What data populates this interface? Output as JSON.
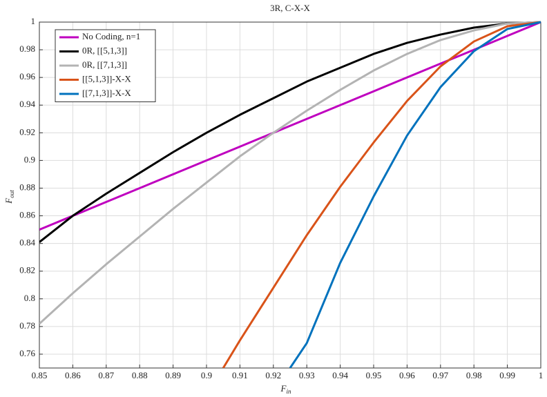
{
  "chart_data": {
    "type": "line",
    "title": "3R, C-X-X",
    "x_label": "F",
    "x_label_sub": "in",
    "y_label": "F",
    "y_label_sub": "out",
    "x": [
      0.85,
      0.86,
      0.87,
      0.88,
      0.89,
      0.9,
      0.905,
      0.91,
      0.92,
      0.925,
      0.93,
      0.94,
      0.95,
      0.96,
      0.97,
      0.98,
      0.99,
      1
    ],
    "series": [
      {
        "name": "No Coding, n=1",
        "color": "#bf00bf",
        "values": [
          0.85,
          0.86,
          0.87,
          0.88,
          0.89,
          0.9,
          0.905,
          0.91,
          0.92,
          0.925,
          0.93,
          0.94,
          0.95,
          0.96,
          0.97,
          0.98,
          0.99,
          1
        ]
      },
      {
        "name": "0R, [[5,1,3]]",
        "color": "#000000",
        "values": [
          0.841,
          0.86,
          0.876,
          0.891,
          0.906,
          0.92,
          0.9265,
          0.933,
          0.945,
          0.951,
          0.957,
          0.967,
          0.977,
          0.985,
          0.991,
          0.996,
          0.999,
          1
        ]
      },
      {
        "name": "0R, [[7,1,3]]",
        "color": "#b3b3b3",
        "values": [
          0.782,
          0.804,
          0.825,
          0.845,
          0.865,
          0.884,
          0.8935,
          0.903,
          0.92,
          0.928,
          0.936,
          0.951,
          0.965,
          0.977,
          0.987,
          0.994,
          0.999,
          1
        ]
      },
      {
        "name": "[[5,1,3]]-X-X",
        "color": "#d95319",
        "values": [
          null,
          null,
          null,
          null,
          null,
          null,
          0.75,
          0.77,
          0.808,
          0.827,
          0.846,
          0.881,
          0.913,
          0.943,
          0.968,
          0.986,
          0.997,
          1
        ]
      },
      {
        "name": "[[7,1,3]]-X-X",
        "color": "#0072bd",
        "values": [
          null,
          null,
          null,
          null,
          null,
          null,
          null,
          null,
          null,
          0.75,
          0.768,
          0.826,
          0.874,
          0.918,
          0.953,
          0.979,
          0.995,
          1
        ]
      }
    ],
    "xlim": [
      0.85,
      1
    ],
    "xticks": [
      0.85,
      0.86,
      0.87,
      0.88,
      0.89,
      0.9,
      0.91,
      0.92,
      0.93,
      0.94,
      0.95,
      0.96,
      0.97,
      0.98,
      0.99,
      1
    ],
    "ylim": [
      0.75,
      1
    ],
    "yticks": [
      0.76,
      0.78,
      0.8,
      0.82,
      0.84,
      0.86,
      0.88,
      0.9,
      0.92,
      0.94,
      0.96,
      0.98,
      1
    ],
    "grid": true,
    "legend": "top-left"
  }
}
